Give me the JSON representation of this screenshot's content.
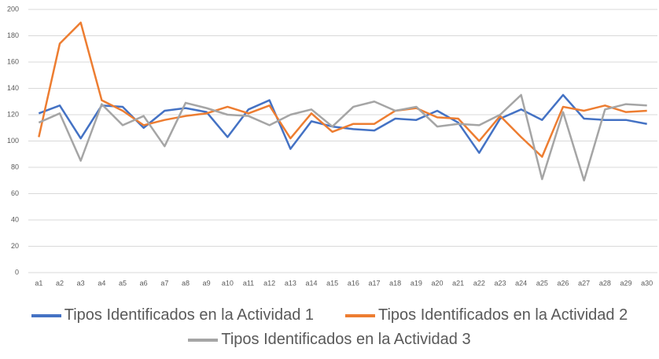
{
  "chart_data": {
    "type": "line",
    "categories": [
      "a1",
      "a2",
      "a3",
      "a4",
      "a5",
      "a6",
      "a7",
      "a8",
      "a9",
      "a10",
      "a11",
      "a12",
      "a13",
      "a14",
      "a15",
      "a16",
      "a17",
      "a18",
      "a19",
      "a20",
      "a21",
      "a22",
      "a23",
      "a24",
      "a25",
      "a26",
      "a27",
      "a28",
      "a29",
      "a30"
    ],
    "series": [
      {
        "name": "Tipos Identificados en la Actividad 1",
        "color": "#4472c4",
        "values": [
          121,
          127,
          102,
          127,
          126,
          110,
          123,
          125,
          122,
          103,
          124,
          131,
          94,
          115,
          111,
          109,
          108,
          117,
          116,
          123,
          114,
          91,
          117,
          124,
          116,
          135,
          117,
          116,
          116,
          113
        ]
      },
      {
        "name": "Tipos Identificados en la Actividad 2",
        "color": "#ed7d31",
        "values": [
          103,
          174,
          190,
          131,
          123,
          112,
          116,
          119,
          121,
          126,
          121,
          127,
          102,
          121,
          107,
          113,
          113,
          123,
          125,
          118,
          117,
          100,
          119,
          103,
          88,
          126,
          123,
          127,
          122,
          123
        ]
      },
      {
        "name": "Tipos Identificados en la Actividad 3",
        "color": "#a5a5a5",
        "values": [
          114,
          121,
          85,
          128,
          112,
          119,
          96,
          129,
          125,
          120,
          119,
          112,
          120,
          124,
          111,
          126,
          130,
          123,
          126,
          111,
          113,
          112,
          120,
          135,
          71,
          122,
          70,
          124,
          128,
          127
        ]
      }
    ],
    "ylim": [
      0,
      200
    ],
    "yticks": [
      0,
      20,
      40,
      60,
      80,
      100,
      120,
      140,
      160,
      180,
      200
    ],
    "grid": true,
    "legend": "bottom"
  }
}
